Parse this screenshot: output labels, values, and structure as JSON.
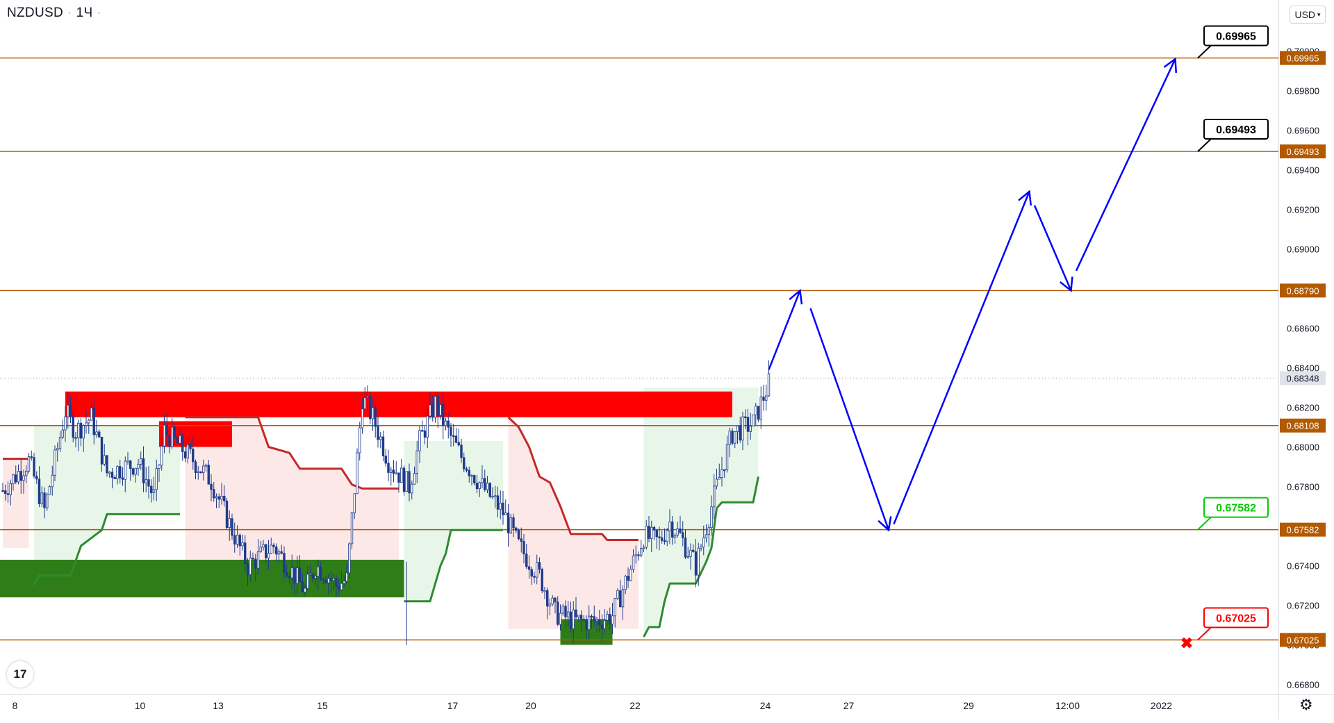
{
  "header": {
    "symbol": "NZDUSD",
    "interval": "1Ч",
    "currency": "USD"
  },
  "logo_text": "17",
  "icons": {
    "settings": "gear-icon",
    "currency_dropdown": "chevron-down-icon",
    "target": "cross-icon"
  },
  "colors": {
    "bg": "#ffffff",
    "level": "#b35900",
    "resistance": "#ff0000",
    "support": "#2e7d18",
    "trail_up": "#2e8b2e",
    "trail_down": "#c62828",
    "fill_up": "#e8f5e9",
    "fill_down": "#fde8e8",
    "candle": "#1e3a8a",
    "projection": "#0000ff",
    "price_box": "#b35900",
    "current_price_box": "#e0e3eb",
    "grid_text": "#131722"
  },
  "chart_data": {
    "type": "candlestick",
    "symbol": "NZDUSD",
    "timeframe": "1H",
    "ylim": [
      0.667,
      0.703
    ],
    "y_ticks": [
      0.668,
      0.67,
      0.672,
      0.674,
      0.676,
      0.678,
      0.68,
      0.682,
      0.684,
      0.686,
      0.688,
      0.69,
      0.692,
      0.694,
      0.696,
      0.698,
      0.7
    ],
    "y_tick_labels": [
      "0.66800",
      "0.67000",
      "0.67200",
      "0.67400",
      "0.67600",
      "0.67800",
      "0.68000",
      "0.68200",
      "0.68400",
      "0.68600",
      "0.68800",
      "0.69000",
      "0.69200",
      "0.69400",
      "0.69600",
      "0.69800",
      "0.70000"
    ],
    "x_ticks": [
      "8",
      "10",
      "13",
      "15",
      "17",
      "20",
      "22",
      "24",
      "27",
      "29",
      "12:00",
      "2022"
    ],
    "x_range": [
      0,
      248
    ],
    "x_tick_positions": [
      1,
      25,
      40,
      60,
      85,
      100,
      120,
      145,
      161,
      184,
      203,
      221
    ],
    "current_price": 0.68348,
    "levels": [
      {
        "label": "0.69965",
        "value": 0.69965
      },
      {
        "label": "0.69493",
        "value": 0.69493
      },
      {
        "label": "0.68790",
        "value": 0.6879
      },
      {
        "label": "0.68108",
        "value": 0.68108
      },
      {
        "label": "0.67582",
        "value": 0.67582
      },
      {
        "label": "0.67025",
        "value": 0.67025
      }
    ],
    "current_price_label": "0.68348",
    "callouts": [
      {
        "label": "0.69965",
        "value": 0.69965,
        "color": "#000000"
      },
      {
        "label": "0.69493",
        "value": 0.69493,
        "color": "#000000"
      },
      {
        "label": "0.67582",
        "value": 0.67582,
        "color": "#00cc00"
      },
      {
        "label": "0.67025",
        "value": 0.67025,
        "color": "#ff0000"
      }
    ],
    "zones": [
      {
        "kind": "resistance",
        "x0": 12,
        "x1": 140,
        "y0": 0.6815,
        "y1": 0.6828
      },
      {
        "kind": "resistance",
        "x0": 30,
        "x1": 44,
        "y0": 0.68,
        "y1": 0.6813
      },
      {
        "kind": "support",
        "x0": -1,
        "x1": 77,
        "y0": 0.6724,
        "y1": 0.6743
      },
      {
        "kind": "support",
        "x0": 107,
        "x1": 117,
        "y0": 0.67,
        "y1": 0.6713
      }
    ],
    "trail": [
      {
        "dir": "down",
        "points": [
          [
            0,
            0.6794
          ],
          [
            5,
            0.6794
          ]
        ]
      },
      {
        "dir": "up",
        "points": [
          [
            6,
            0.673
          ],
          [
            7,
            0.6735
          ],
          [
            13,
            0.6735
          ],
          [
            15,
            0.675
          ],
          [
            19,
            0.6758
          ],
          [
            20,
            0.6766
          ],
          [
            34,
            0.6766
          ]
        ]
      },
      {
        "dir": "down",
        "points": [
          [
            35,
            0.6815
          ],
          [
            49,
            0.6815
          ],
          [
            51,
            0.68
          ],
          [
            55,
            0.6797
          ],
          [
            57,
            0.6789
          ],
          [
            65,
            0.6789
          ],
          [
            67,
            0.6781
          ],
          [
            69,
            0.6779
          ],
          [
            76,
            0.6779
          ]
        ]
      },
      {
        "dir": "up",
        "points": [
          [
            77,
            0.6722
          ],
          [
            82,
            0.6722
          ],
          [
            84,
            0.674
          ],
          [
            85,
            0.6746
          ],
          [
            86,
            0.6758
          ],
          [
            96,
            0.6758
          ]
        ]
      },
      {
        "dir": "down",
        "points": [
          [
            97,
            0.6815
          ],
          [
            99,
            0.681
          ],
          [
            101,
            0.68
          ],
          [
            103,
            0.6785
          ],
          [
            105,
            0.6782
          ],
          [
            107,
            0.677
          ],
          [
            109,
            0.6756
          ],
          [
            115,
            0.6756
          ],
          [
            116,
            0.6753
          ],
          [
            122,
            0.6753
          ]
        ]
      },
      {
        "dir": "up",
        "points": [
          [
            123,
            0.6704
          ],
          [
            124,
            0.6709
          ],
          [
            126,
            0.6709
          ],
          [
            127,
            0.6722
          ],
          [
            128,
            0.6731
          ],
          [
            133,
            0.6731
          ],
          [
            135,
            0.6742
          ],
          [
            136,
            0.6749
          ],
          [
            137,
            0.6769
          ],
          [
            138,
            0.6772
          ],
          [
            144,
            0.6772
          ],
          [
            145,
            0.6785
          ]
        ]
      }
    ],
    "projection": {
      "segments": [
        [
          [
            147,
            0.6839
          ],
          [
            153,
            0.6879
          ]
        ],
        [
          [
            155,
            0.687
          ],
          [
            170,
            0.6758
          ]
        ],
        [
          [
            171,
            0.6761
          ],
          [
            197,
            0.6929
          ]
        ],
        [
          [
            198,
            0.6922
          ],
          [
            205,
            0.6879
          ]
        ],
        [
          [
            206,
            0.6889
          ],
          [
            225,
            0.6996
          ]
        ]
      ]
    },
    "candle_hint": "synthetic OHLC generated from the price path anchors"
  }
}
